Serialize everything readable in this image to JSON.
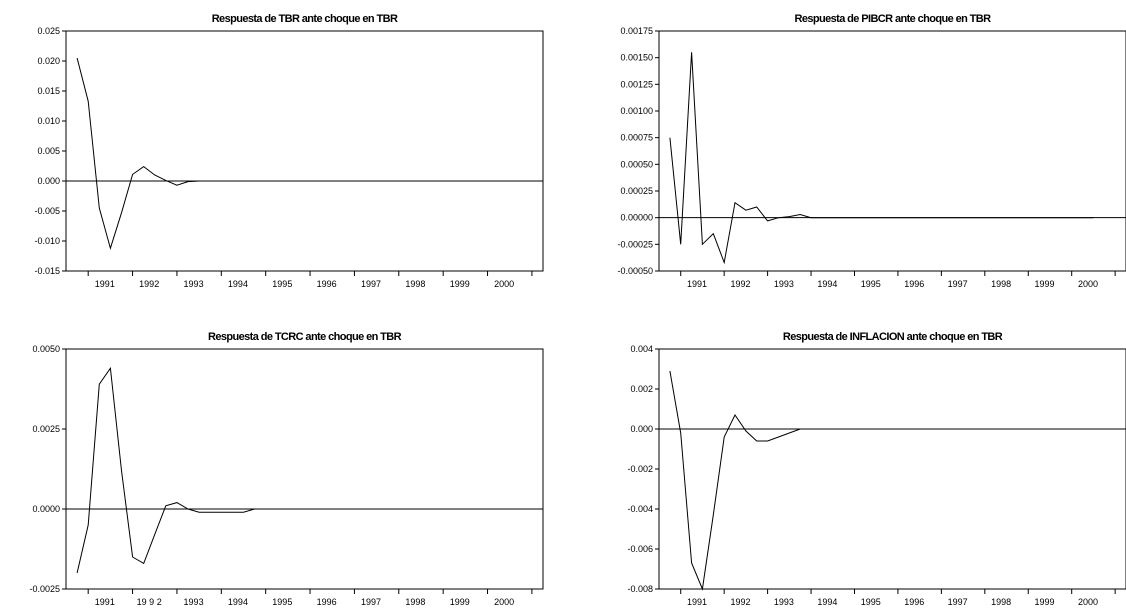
{
  "chart_data": [
    {
      "type": "line",
      "title": "Respuesta de TBR ante choque en TBR",
      "ylim": [
        -0.015,
        0.025
      ],
      "yticks": [
        "0.025",
        "0.020",
        "0.015",
        "0.010",
        "0.005",
        "0.000",
        "-0.005",
        "-0.010",
        "-0.015"
      ],
      "x_start": 1990.75,
      "x_step": 0.25,
      "x_tick_years": [
        "1991",
        "1992",
        "1993",
        "1994",
        "1995",
        "1996",
        "1997",
        "1998",
        "1999",
        "2000"
      ],
      "zero_line": true,
      "values": [
        0.0205,
        0.0133,
        -0.0045,
        -0.0112,
        -0.0053,
        0.0011,
        0.0024,
        0.001,
        0.0001,
        -0.0007,
        -0.0001,
        0,
        0,
        0,
        0,
        0,
        0,
        0,
        0,
        0,
        0,
        0,
        0,
        0,
        0,
        0,
        0,
        0,
        0,
        0,
        0,
        0,
        0,
        0,
        0,
        0,
        0,
        0,
        0,
        0
      ]
    },
    {
      "type": "line",
      "title": "Respuesta de PIBCR ante choque en TBR",
      "ylim": [
        -0.0005,
        0.00175
      ],
      "yticks": [
        "0.00175",
        "0.00150",
        "0.00125",
        "0.00100",
        "0.00075",
        "0.00050",
        "0.00025",
        "0.00000",
        "-0.00025",
        "-0.00050"
      ],
      "x_start": 1990.75,
      "x_step": 0.25,
      "x_tick_years": [
        "1991",
        "1992",
        "1993",
        "1994",
        "1995",
        "1996",
        "1997",
        "1998",
        "1999",
        "2000"
      ],
      "zero_line": true,
      "values": [
        0.00075,
        -0.00025,
        0.00155,
        -0.00025,
        -0.00015,
        -0.00042,
        0.00014,
        7e-05,
        0.0001,
        -3e-05,
        0,
        1e-05,
        3e-05,
        0,
        0,
        0,
        0,
        0,
        0,
        0,
        0,
        0,
        0,
        0,
        0,
        0,
        0,
        0,
        0,
        0,
        0,
        0,
        0,
        0,
        0,
        0,
        0,
        0,
        0,
        0
      ]
    },
    {
      "type": "line",
      "title": "Respuesta de TCRC ante choque en TBR",
      "ylim": [
        -0.0025,
        0.005
      ],
      "yticks": [
        "0.0050",
        "0.0025",
        "0.0000",
        "-0.0025"
      ],
      "x_start": 1990.75,
      "x_step": 0.25,
      "x_tick_labels": [
        "1991",
        "19 9 2",
        "1993",
        "1994",
        "1995",
        "1996",
        "1997",
        "1998",
        "1999",
        "2000"
      ],
      "zero_line": true,
      "values": [
        -0.002,
        -0.0005,
        0.0039,
        0.0044,
        0.0012,
        -0.0015,
        -0.0017,
        -0.0008,
        0.0001,
        0.0002,
        0,
        -0.0001,
        -0.0001,
        -0.0001,
        -0.0001,
        -0.0001,
        0,
        0,
        0,
        0,
        0,
        0,
        0,
        0,
        0,
        0,
        0,
        0,
        0,
        0,
        0,
        0,
        0,
        0,
        0,
        0,
        0,
        0,
        0,
        0
      ]
    },
    {
      "type": "line",
      "title": "Respuesta de INFLACION ante choque en TBR",
      "ylim": [
        -0.008,
        0.004
      ],
      "yticks": [
        "0.004",
        "0.002",
        "0.000",
        "-0.002",
        "-0.004",
        "-0.006",
        "-0.008"
      ],
      "x_start": 1990.75,
      "x_step": 0.25,
      "x_tick_years": [
        "1991",
        "1992",
        "1993",
        "1994",
        "1995",
        "1996",
        "1997",
        "1998",
        "1999",
        "2000"
      ],
      "zero_line": true,
      "values": [
        0.0029,
        -0.0002,
        -0.0067,
        -0.008,
        -0.0043,
        -0.0004,
        0.0007,
        -0.0001,
        -0.0006,
        -0.0006,
        -0.0004,
        -0.0002,
        0,
        0,
        0,
        0,
        0,
        0,
        0,
        0,
        0,
        0,
        0,
        0,
        0,
        0,
        0,
        0,
        0,
        0,
        0,
        0,
        0,
        0,
        0,
        0,
        0,
        0,
        0,
        0
      ]
    }
  ]
}
